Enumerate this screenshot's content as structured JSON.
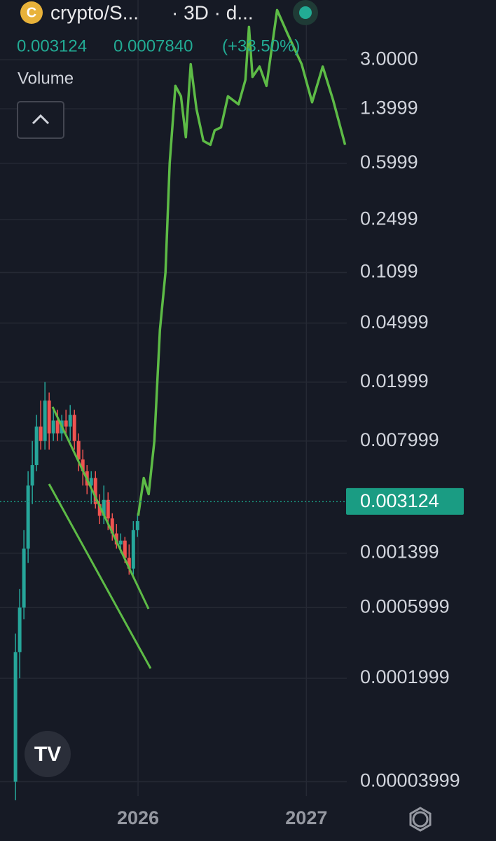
{
  "header": {
    "symbol": "crypto/S...",
    "interval": "· 3D · d...",
    "change": "0.0007840",
    "change_pct": "(+33.50%)",
    "volume_label": "Volume"
  },
  "chart_data": {
    "type": "candlestick",
    "log_scale": true,
    "grid": true,
    "up_color": "#26a69a",
    "down_color": "#ef5350",
    "last_price": 0.003124,
    "last_price_color": "#1a9c83",
    "xlim": [
      2025.18,
      2027.24
    ],
    "xticks": [
      2026,
      2027
    ],
    "ylim": [
      3.2e-05,
      7.6
    ],
    "yticks": [
      {
        "value": 3,
        "label": "3.0000"
      },
      1.3999,
      0.5999,
      0.2499,
      0.1099,
      0.04999,
      0.01999,
      0.007999,
      0.001399,
      0.0005999,
      0.0001999,
      3.999e-05
    ],
    "x": [
      2025.272,
      2025.297,
      2025.322,
      2025.347,
      2025.372,
      2025.397,
      2025.422,
      2025.447,
      2025.472,
      2025.497,
      2025.522,
      2025.547,
      2025.572,
      2025.597,
      2025.622,
      2025.647,
      2025.672,
      2025.697,
      2025.722,
      2025.747,
      2025.772,
      2025.797,
      2025.822,
      2025.847,
      2025.872,
      2025.897,
      2025.922,
      2025.947,
      2025.972,
      2025.997
    ],
    "open": [
      4e-05,
      0.0003,
      0.0006,
      0.0015,
      0.004,
      0.0055,
      0.01,
      0.008,
      0.015,
      0.009,
      0.011,
      0.009,
      0.011,
      0.01,
      0.012,
      0.008,
      0.006,
      0.005,
      0.004,
      0.0045,
      0.003,
      0.0025,
      0.0032,
      0.0024,
      0.0019,
      0.0016,
      0.0017,
      0.0013,
      0.0011,
      0.002
    ],
    "high": [
      0.0004,
      0.0008,
      0.002,
      0.005,
      0.008,
      0.012,
      0.015,
      0.02,
      0.017,
      0.013,
      0.013,
      0.012,
      0.013,
      0.014,
      0.013,
      0.009,
      0.007,
      0.0055,
      0.005,
      0.005,
      0.0035,
      0.004,
      0.0036,
      0.0026,
      0.0022,
      0.0019,
      0.0018,
      0.0016,
      0.0023,
      0.0026
    ],
    "low": [
      3e-05,
      0.0002,
      0.0005,
      0.0012,
      0.003,
      0.005,
      0.007,
      0.007,
      0.007,
      0.008,
      0.008,
      0.008,
      0.009,
      0.008,
      0.007,
      0.005,
      0.004,
      0.0035,
      0.003,
      0.0028,
      0.0022,
      0.0022,
      0.002,
      0.0017,
      0.0015,
      0.0014,
      0.0012,
      0.001,
      0.001,
      0.0018
    ],
    "close": [
      0.0003,
      0.0006,
      0.0015,
      0.004,
      0.0055,
      0.01,
      0.008,
      0.015,
      0.009,
      0.011,
      0.009,
      0.011,
      0.01,
      0.012,
      0.008,
      0.006,
      0.005,
      0.004,
      0.0045,
      0.003,
      0.0025,
      0.0032,
      0.0024,
      0.0019,
      0.0016,
      0.0017,
      0.0013,
      0.0011,
      0.002,
      0.0023
    ],
    "projection": {
      "type": "line",
      "color": "#5dbb46",
      "x": [
        2026.001,
        2026.034,
        2026.063,
        2026.097,
        2026.13,
        2026.163,
        2026.188,
        2026.222,
        2026.255,
        2026.284,
        2026.313,
        2026.347,
        2026.388,
        2026.43,
        2026.455,
        2026.493,
        2026.534,
        2026.597,
        2026.638,
        2026.659,
        2026.68,
        2026.722,
        2026.763,
        2026.826,
        2026.888,
        2026.972,
        2027.034,
        2027.097,
        2027.159,
        2027.23
      ],
      "values": [
        0.0025,
        0.0045,
        0.0035,
        0.008,
        0.045,
        0.11,
        0.6,
        2.0,
        1.7,
        0.9,
        2.8,
        1.4,
        0.85,
        0.8,
        1.0,
        1.05,
        1.7,
        1.5,
        2.2,
        5,
        2.3,
        2.7,
        2.0,
        6.5,
        4.5,
        2.8,
        1.55,
        2.7,
        1.6,
        0.8
      ]
    }
  }
}
